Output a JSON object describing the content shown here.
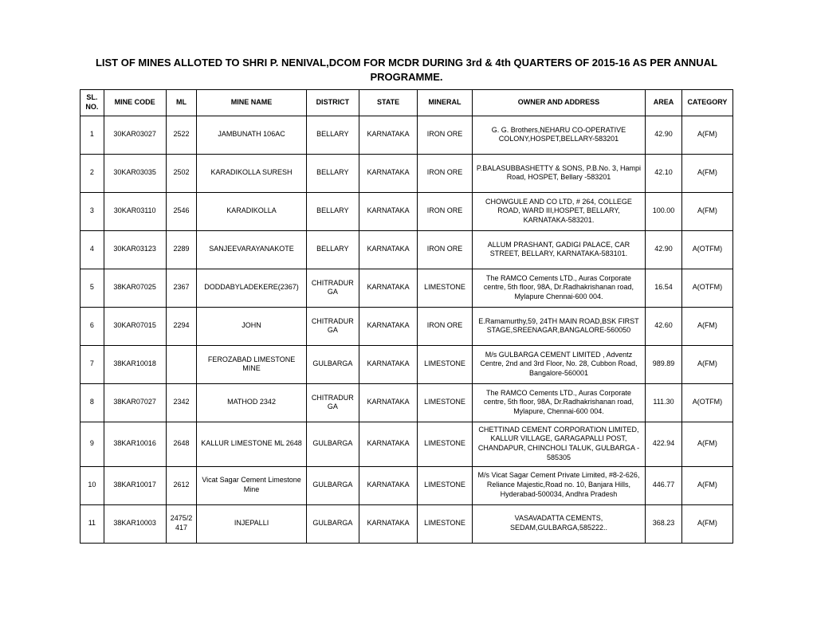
{
  "title": "LIST OF MINES ALLOTED TO SHRI P. NENIVAL,DCOM FOR MCDR DURING 3rd & 4th QUARTERS OF 2015-16 AS PER ANNUAL PROGRAMME.",
  "columns": {
    "sl": "SL. NO.",
    "code": "MINE CODE",
    "ml": "ML",
    "name": "MINE NAME",
    "district": "DISTRICT",
    "state": "STATE",
    "mineral": "MINERAL",
    "owner": "OWNER AND ADDRESS",
    "area": "AREA",
    "category": "CATEGORY"
  },
  "rows": [
    {
      "sl": "1",
      "code": "30KAR03027",
      "ml": "2522",
      "name": "JAMBUNATH 106AC",
      "district": "BELLARY",
      "state": "KARNATAKA",
      "mineral": "IRON ORE",
      "owner": "G. G. Brothers,NEHARU CO-OPERATIVE COLONY,HOSPET,BELLARY-583201",
      "area": "42.90",
      "category": "A(FM)"
    },
    {
      "sl": "2",
      "code": "30KAR03035",
      "ml": "2502",
      "name": "KARADIKOLLA SURESH",
      "district": "BELLARY",
      "state": "KARNATAKA",
      "mineral": "IRON ORE",
      "owner": "P.BALASUBBASHETTY & SONS, P.B.No. 3, Hampi Road, HOSPET, Bellary -583201",
      "area": "42.10",
      "category": "A(FM)"
    },
    {
      "sl": "3",
      "code": "30KAR03110",
      "ml": "2546",
      "name": "KARADIKOLLA",
      "district": "BELLARY",
      "state": "KARNATAKA",
      "mineral": "IRON ORE",
      "owner": "CHOWGULE AND CO LTD, # 264, COLLEGE ROAD, WARD III,HOSPET, BELLARY, KARNATAKA-583201.",
      "area": "100.00",
      "category": "A(FM)"
    },
    {
      "sl": "4",
      "code": "30KAR03123",
      "ml": "2289",
      "name": "SANJEEVARAYANAKOTE",
      "district": "BELLARY",
      "state": "KARNATAKA",
      "mineral": "IRON ORE",
      "owner": "ALLUM PRASHANT, GADIGI PALACE, CAR STREET, BELLARY, KARNATAKA-583101.",
      "area": "42.90",
      "category": "A(OTFM)"
    },
    {
      "sl": "5",
      "code": "38KAR07025",
      "ml": "2367",
      "name": "DODDABYLADEKERE(2367)",
      "district": "CHITRADURGA",
      "state": "KARNATAKA",
      "mineral": "LIMESTONE",
      "owner": "The RAMCO Cements LTD., Auras Corporate centre, 5th floor, 98A, Dr.Radhakrishanan road, Mylapure Chennai-600 004.",
      "area": "16.54",
      "category": "A(OTFM)"
    },
    {
      "sl": "6",
      "code": "30KAR07015",
      "ml": "2294",
      "name": "JOHN",
      "district": "CHITRADURGA",
      "state": "KARNATAKA",
      "mineral": "IRON ORE",
      "owner": "E.Ramamurthy,59, 24TH MAIN ROAD,BSK FIRST STAGE,SREENAGAR,BANGALORE-560050",
      "area": "42.60",
      "category": "A(FM)"
    },
    {
      "sl": "7",
      "code": "38KAR10018",
      "ml": "",
      "name": "FEROZABAD LIMESTONE MINE",
      "district": "GULBARGA",
      "state": "KARNATAKA",
      "mineral": "LIMESTONE",
      "owner": "M/s GULBARGA CEMENT LIMITED , Adventz Centre,  2nd and 3rd Floor,  No. 28,  Cubbon Road,  Bangalore-560001",
      "area": "989.89",
      "category": "A(FM)"
    },
    {
      "sl": "8",
      "code": "38KAR07027",
      "ml": "2342",
      "name": "MATHOD 2342",
      "district": "CHITRADURGA",
      "state": "KARNATAKA",
      "mineral": "LIMESTONE",
      "owner": "The RAMCO Cements LTD., Auras Corporate centre, 5th floor, 98A, Dr.Radhakrishanan road, Mylapure, Chennai-600 004.",
      "area": "111.30",
      "category": "A(OTFM)"
    },
    {
      "sl": "9",
      "code": "38KAR10016",
      "ml": "2648",
      "name": "KALLUR LIMESTONE ML 2648",
      "district": "GULBARGA",
      "state": "KARNATAKA",
      "mineral": "LIMESTONE",
      "owner": "CHETTINAD CEMENT CORPORATION LIMITED, KALLUR VILLAGE, GARAGAPALLI POST, CHANDAPUR, CHINCHOLI TALUK, GULBARGA - 585305",
      "area": "422.94",
      "category": "A(FM)"
    },
    {
      "sl": "10",
      "code": "38KAR10017",
      "ml": "2612",
      "name": "Vicat Sagar Cement Limestone Mine",
      "district": "GULBARGA",
      "state": "KARNATAKA",
      "mineral": "LIMESTONE",
      "owner": "M/s Vicat Sagar Cement Private Limited, #8-2-626, Reliance Majestic,Road no. 10, Banjara Hills, Hyderabad-500034, Andhra Pradesh",
      "area": "446.77",
      "category": "A(FM)"
    },
    {
      "sl": "11",
      "code": "38KAR10003",
      "ml": "2475/2417",
      "name": "INJEPALLI",
      "district": "GULBARGA",
      "state": "KARNATAKA",
      "mineral": "LIMESTONE",
      "owner": "VASAVADATTA CEMENTS, SEDAM,GULBARGA,585222..",
      "area": "368.23",
      "category": "A(FM)"
    }
  ]
}
